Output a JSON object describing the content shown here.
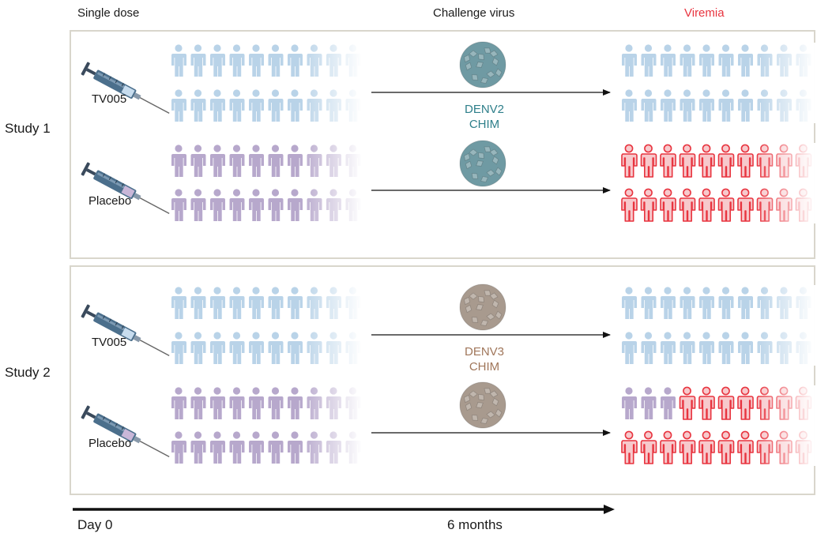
{
  "headers": {
    "single_dose": "Single dose",
    "challenge_virus": "Challenge virus",
    "viremia": "Viremia"
  },
  "studies": [
    {
      "label": "Study 1",
      "virus": {
        "line1": "DENV2",
        "line2": "CHIM",
        "color": "#2e7f8a",
        "ball_color": "#6f9aa3"
      },
      "arms": [
        {
          "label": "TV005",
          "person_color": "#b9d3e8",
          "viremic_rows": [
            0,
            0
          ]
        },
        {
          "label": "Placebo",
          "person_color": "#b7a8cc",
          "viremic_rows": [
            10,
            10
          ]
        }
      ]
    },
    {
      "label": "Study 2",
      "virus": {
        "line1": "DENV3",
        "line2": "CHIM",
        "color": "#a0765a",
        "ball_color": "#a89a8e"
      },
      "arms": [
        {
          "label": "TV005",
          "person_color": "#b9d3e8",
          "viremic_rows": [
            0,
            0
          ]
        },
        {
          "label": "Placebo",
          "person_color": "#b7a8cc",
          "viremic_rows": [
            7,
            10
          ]
        }
      ]
    }
  ],
  "timeline": {
    "start": "Day 0",
    "end": "6 months"
  },
  "colors": {
    "viremia": "#e8343f",
    "viremia_fill": "#f7c9cc",
    "syringe_barrel": "#4b6f8c",
    "arrow": "#111111",
    "panel_border": "#d9d6cc"
  }
}
